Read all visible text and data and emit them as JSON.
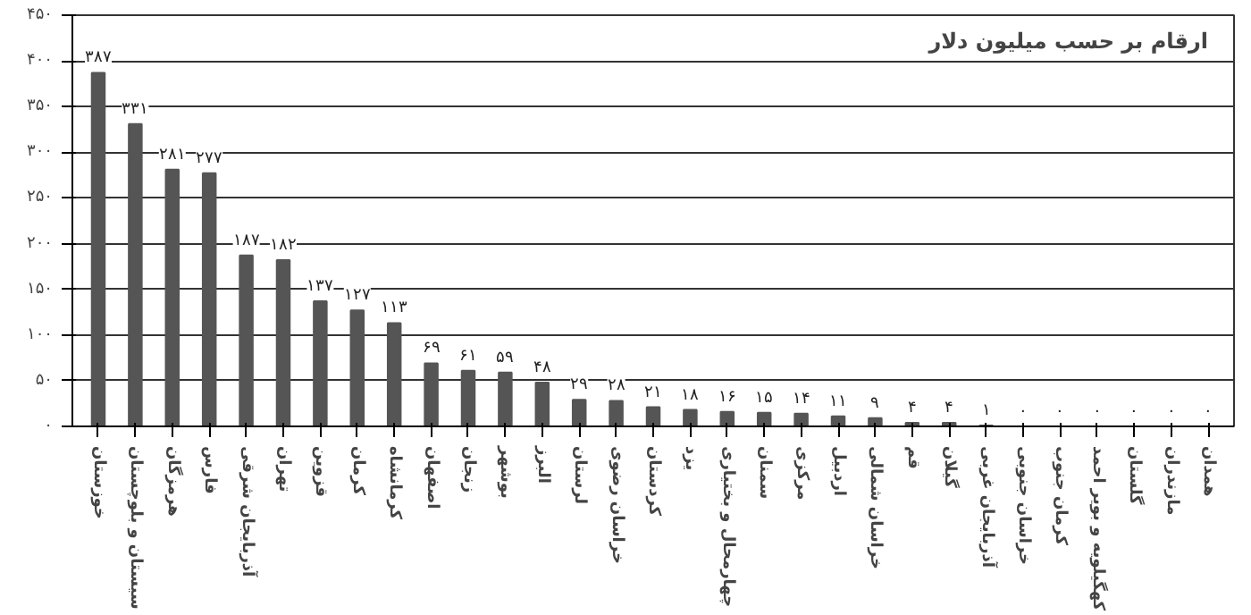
{
  "chart_data": {
    "type": "bar",
    "title": "ارقام بر حسب میلیون دلار",
    "categories": [
      "خوزستان",
      "سیستان و بلوچستان",
      "هرمزگان",
      "فارس",
      "آذربایجان شرقی",
      "تهران",
      "قزوین",
      "کرمان",
      "کرمانشاه",
      "اصفهان",
      "زنجان",
      "بوشهر",
      "البرز",
      "لرستان",
      "خراسان رضوی",
      "کردستان",
      "یزد",
      "چهارمحال و بختیاری",
      "سمنان",
      "مرکزی",
      "اردبیل",
      "خراسان شمالی",
      "قم",
      "گیلان",
      "آذربایجان غربی",
      "خراسان جنوبی",
      "کرمان جنوب",
      "کهگیلویه و بویر احمد",
      "گلستان",
      "مازندران",
      "همدان"
    ],
    "values": [
      387,
      331,
      281,
      277,
      187,
      182,
      137,
      127,
      113,
      69,
      61,
      59,
      48,
      29,
      28,
      21,
      18,
      16,
      15,
      14,
      11,
      9,
      4,
      4,
      1,
      0,
      0,
      0,
      0,
      0,
      0
    ],
    "value_labels": [
      "۳۸۷",
      "۳۳۱",
      "۲۸۱",
      "۲۷۷",
      "۱۸۷",
      "۱۸۲",
      "۱۳۷",
      "۱۲۷",
      "۱۱۳",
      "۶۹",
      "۶۱",
      "۵۹",
      "۴۸",
      "۲۹",
      "۲۸",
      "۲۱",
      "۱۸",
      "۱۶",
      "۱۵",
      "۱۴",
      "۱۱",
      "۹",
      "۴",
      "۴",
      "۱",
      "۰",
      "۰",
      "۰",
      "۰",
      "۰",
      "۰"
    ],
    "color": "#555555",
    "ylim": [
      0,
      450
    ],
    "yticks": [
      {
        "value": 0,
        "label": "۰"
      },
      {
        "value": 50,
        "label": "۵۰"
      },
      {
        "value": 100,
        "label": "۱۰۰"
      },
      {
        "value": 150,
        "label": "۱۵۰"
      },
      {
        "value": 200,
        "label": "۲۰۰"
      },
      {
        "value": 250,
        "label": "۲۵۰"
      },
      {
        "value": 300,
        "label": "۳۰۰"
      },
      {
        "value": 350,
        "label": "۳۵۰"
      },
      {
        "value": 400,
        "label": "۴۰۰"
      },
      {
        "value": 450,
        "label": "۴۵۰"
      }
    ],
    "grid": "y"
  }
}
